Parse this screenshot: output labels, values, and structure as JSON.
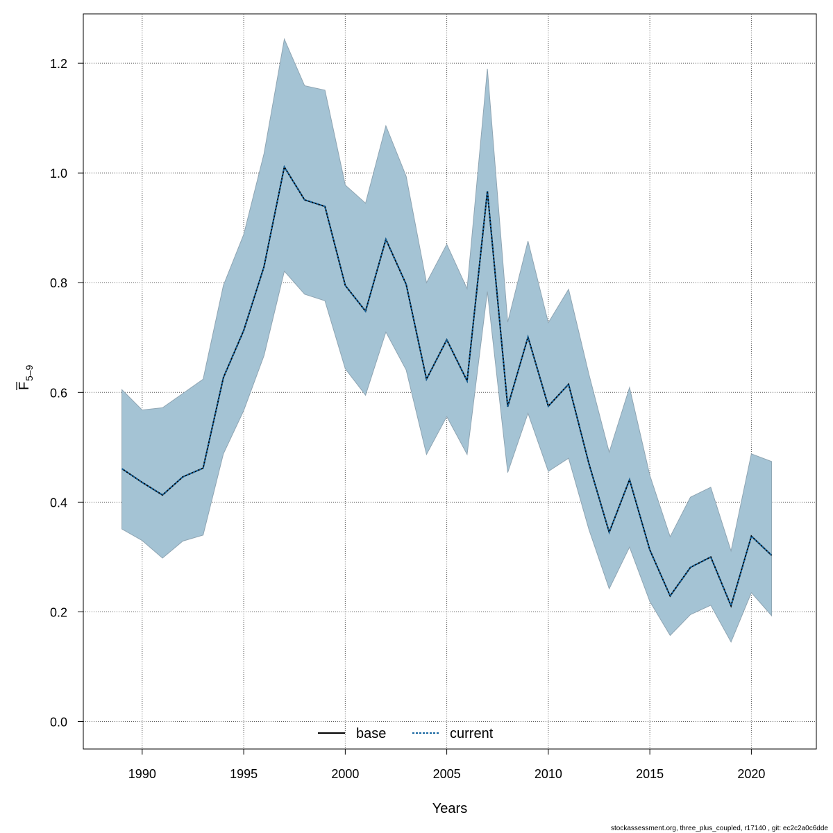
{
  "chart_data": {
    "type": "line",
    "title": "",
    "xlabel": "Years",
    "ylabel": {
      "main": "F",
      "sub": "5–9"
    },
    "xlim": [
      1987.1,
      2023.2
    ],
    "ylim": [
      -0.05,
      1.29
    ],
    "xticks": [
      1990,
      1995,
      2000,
      2005,
      2010,
      2015,
      2020
    ],
    "yticks": [
      0.0,
      0.2,
      0.4,
      0.6,
      0.8,
      1.0,
      1.2
    ],
    "ytick_labels": [
      "0.0",
      "0.2",
      "0.4",
      "0.6",
      "0.8",
      "1.0",
      "1.2"
    ],
    "grid": true,
    "legend_position": "bottom-center",
    "band_color": "#A4C3D4",
    "band_edge_color": "#8FA5B3",
    "x": [
      1989,
      1990,
      1991,
      1992,
      1993,
      1994,
      1995,
      1996,
      1997,
      1998,
      1999,
      2000,
      2001,
      2002,
      2003,
      2004,
      2005,
      2006,
      2007,
      2008,
      2009,
      2010,
      2011,
      2012,
      2013,
      2014,
      2015,
      2016,
      2017,
      2018,
      2019,
      2020,
      2021
    ],
    "band_upper": [
      0.605,
      0.568,
      0.572,
      0.598,
      0.624,
      0.795,
      0.888,
      1.035,
      1.244,
      1.159,
      1.151,
      0.978,
      0.945,
      1.086,
      0.994,
      0.8,
      0.87,
      0.789,
      1.19,
      0.728,
      0.876,
      0.727,
      0.788,
      0.633,
      0.491,
      0.609,
      0.449,
      0.337,
      0.409,
      0.427,
      0.311,
      0.488,
      0.474
    ],
    "band_lower": [
      0.351,
      0.33,
      0.298,
      0.329,
      0.34,
      0.488,
      0.567,
      0.667,
      0.821,
      0.779,
      0.767,
      0.643,
      0.595,
      0.71,
      0.641,
      0.487,
      0.556,
      0.487,
      0.784,
      0.454,
      0.562,
      0.456,
      0.48,
      0.35,
      0.242,
      0.318,
      0.219,
      0.157,
      0.195,
      0.212,
      0.145,
      0.235,
      0.193
    ],
    "series": [
      {
        "name": "base",
        "style": "solid",
        "color": "#000000",
        "values": [
          0.461,
          0.436,
          0.413,
          0.446,
          0.462,
          0.627,
          0.713,
          0.829,
          1.011,
          0.951,
          0.939,
          0.795,
          0.748,
          0.879,
          0.797,
          0.624,
          0.696,
          0.621,
          0.967,
          0.574,
          0.701,
          0.575,
          0.615,
          0.47,
          0.345,
          0.441,
          0.313,
          0.229,
          0.281,
          0.3,
          0.211,
          0.338,
          0.303
        ]
      },
      {
        "name": "current",
        "style": "dashed",
        "color": "#1565A0",
        "values": [
          0.461,
          0.436,
          0.413,
          0.446,
          0.462,
          0.627,
          0.713,
          0.829,
          1.011,
          0.951,
          0.939,
          0.795,
          0.748,
          0.879,
          0.797,
          0.624,
          0.696,
          0.621,
          0.967,
          0.574,
          0.701,
          0.575,
          0.615,
          0.47,
          0.345,
          0.441,
          0.313,
          0.229,
          0.281,
          0.3,
          0.211,
          0.338,
          0.303
        ]
      }
    ]
  },
  "footer": "stockassessment.org, three_plus_coupled, r17140 , git: ec2c2a0c6dde"
}
